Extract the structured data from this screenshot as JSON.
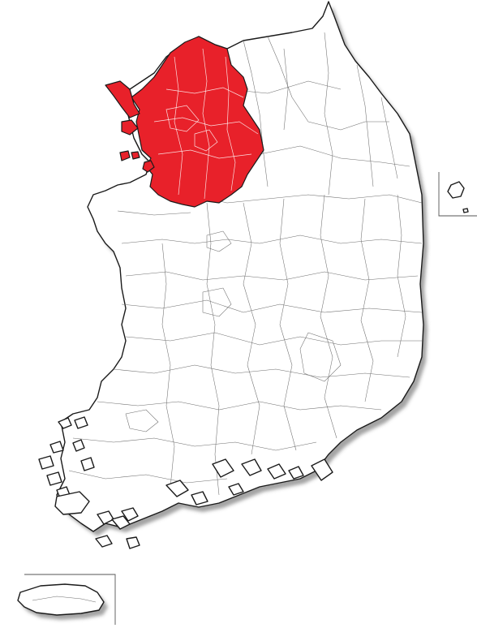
{
  "map": {
    "highlight_color": "#e8212a",
    "land_color": "#ffffff",
    "outline_color": "#1a1a1a",
    "border_color": "#6e6e6e"
  }
}
